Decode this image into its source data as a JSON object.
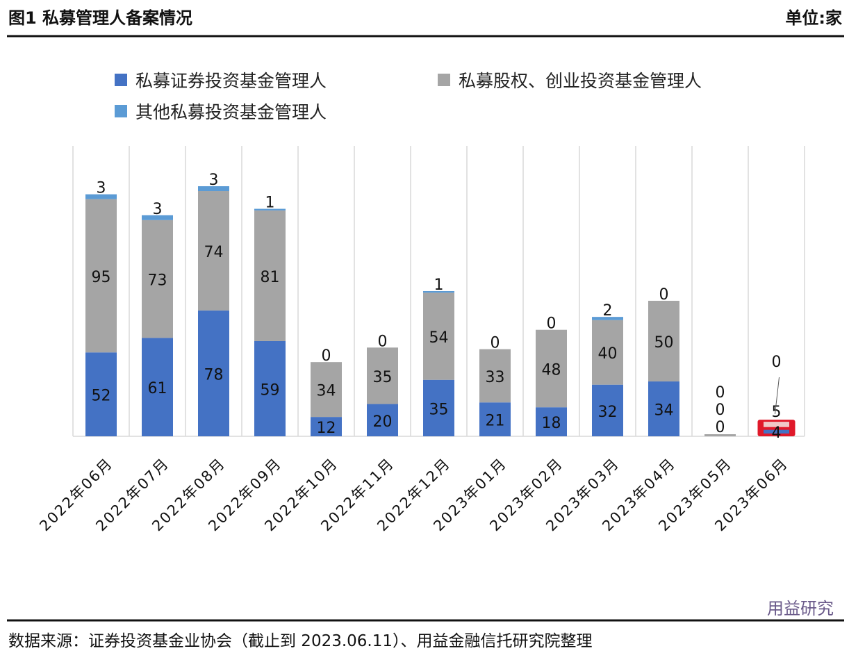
{
  "header": {
    "title": "图1 私募管理人备案情况",
    "unit": "单位:家"
  },
  "footer": {
    "source": "数据来源：证券投资基金业协会（截止到 2023.06.11）、用益金融信托研究院整理",
    "watermark": "用益研究"
  },
  "chart_data": {
    "type": "bar",
    "stacked": true,
    "categories": [
      "2022年06月",
      "2022年07月",
      "2022年08月",
      "2022年09月",
      "2022年10月",
      "2022年11月",
      "2022年12月",
      "2023年01月",
      "2023年02月",
      "2023年03月",
      "2023年04月",
      "2023年05月",
      "2023年06月"
    ],
    "series": [
      {
        "name": "私募证券投资基金管理人",
        "color": "#4472C4",
        "values": [
          52,
          61,
          78,
          59,
          12,
          20,
          35,
          21,
          18,
          32,
          34,
          0,
          4
        ]
      },
      {
        "name": "私募股权、创业投资基金管理人",
        "color": "#A5A5A5",
        "values": [
          95,
          73,
          74,
          81,
          34,
          35,
          54,
          33,
          48,
          40,
          50,
          0,
          5
        ]
      },
      {
        "name": "其他私募投资基金管理人",
        "color": "#5B9BD5",
        "values": [
          3,
          3,
          3,
          1,
          0,
          0,
          1,
          0,
          0,
          2,
          0,
          0,
          0
        ]
      }
    ],
    "legend_position": "top",
    "grid": "vertical separators",
    "highlight": {
      "category": "2023年06月",
      "color": "#E0192A"
    },
    "ylim": [
      0,
      180
    ]
  }
}
